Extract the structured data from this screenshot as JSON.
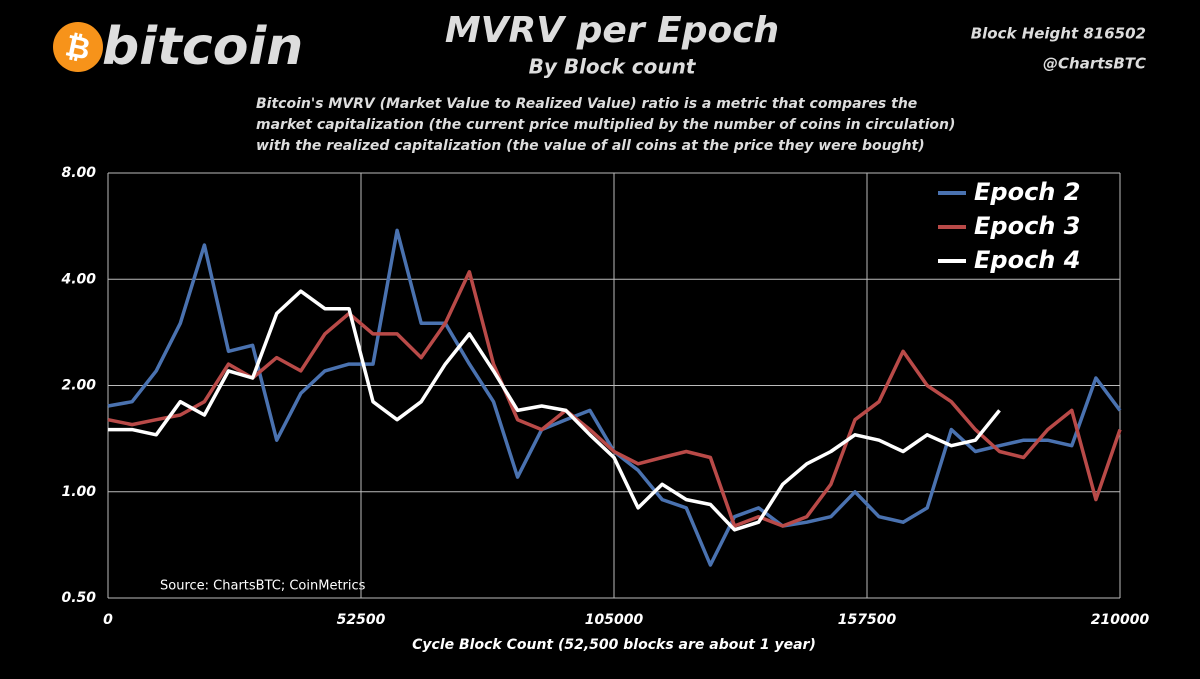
{
  "chart_data": {
    "type": "line",
    "logo_symbol": "₿",
    "logo": "bitcoin",
    "title": "MVRV per Epoch",
    "subtitle": "By Block count",
    "block_height": "Block Height 816502",
    "handle": "@ChartsBTC",
    "description": [
      "Bitcoin's MVRV (Market Value to Realized Value) ratio is a metric that compares the",
      "market capitalization (the current price multiplied by the number of coins in circulation)",
      "with the realized capitalization (the value of all coins at the price they were bought)"
    ],
    "source": "Source:  ChartsBTC; CoinMetrics",
    "x_label": "Cycle Block Count (52,500 blocks are about 1 year)",
    "xlim": [
      0,
      210000
    ],
    "xticks": [
      0,
      52500,
      105000,
      157500,
      210000
    ],
    "ylim": [
      0.5,
      8
    ],
    "yticks": [
      {
        "value": 0.5,
        "label": "0.50"
      },
      {
        "value": 1,
        "label": "1.00"
      },
      {
        "value": 2,
        "label": "2.00"
      },
      {
        "value": 4,
        "label": "4.00"
      },
      {
        "value": 8,
        "label": "8.00"
      }
    ],
    "log_scale_y": true,
    "grid": true,
    "legend": "upper right",
    "x": [
      0,
      5000,
      10000,
      15000,
      20000,
      25000,
      30000,
      35000,
      40000,
      45000,
      50000,
      55000,
      60000,
      65000,
      70000,
      75000,
      80000,
      85000,
      90000,
      95000,
      100000,
      105000,
      110000,
      115000,
      120000,
      125000,
      130000,
      135000,
      140000,
      145000,
      150000,
      155000,
      160000,
      165000,
      170000,
      175000,
      180000,
      185000,
      190000,
      195000,
      200000,
      205000,
      210000
    ],
    "series": [
      {
        "name": "Epoch 2",
        "color": "#4a72b0",
        "values": [
          1.75,
          1.8,
          2.2,
          3.0,
          5.0,
          2.5,
          2.6,
          1.4,
          1.9,
          2.2,
          2.3,
          2.3,
          5.5,
          3.0,
          3.0,
          2.3,
          1.8,
          1.1,
          1.5,
          1.6,
          1.7,
          1.3,
          1.15,
          0.95,
          0.9,
          0.62,
          0.85,
          0.9,
          0.8,
          0.82,
          0.85,
          1.0,
          0.85,
          0.82,
          0.9,
          1.5,
          1.3,
          1.35,
          1.4,
          1.4,
          1.35,
          2.1,
          1.7
        ]
      },
      {
        "name": "Epoch 3",
        "color": "#b94a48",
        "values": [
          1.6,
          1.55,
          1.6,
          1.65,
          1.8,
          2.3,
          2.1,
          2.4,
          2.2,
          2.8,
          3.2,
          2.8,
          2.8,
          2.4,
          3.0,
          4.2,
          2.3,
          1.6,
          1.5,
          1.7,
          1.5,
          1.3,
          1.2,
          1.25,
          1.3,
          1.25,
          0.8,
          0.85,
          0.8,
          0.85,
          1.05,
          1.6,
          1.8,
          2.5,
          2.0,
          1.8,
          1.5,
          1.3,
          1.25,
          1.5,
          1.7,
          0.95,
          1.5
        ]
      },
      {
        "name": "Epoch 4",
        "color": "#ffffff",
        "values": [
          1.5,
          1.5,
          1.45,
          1.8,
          1.65,
          2.2,
          2.1,
          3.2,
          3.7,
          3.3,
          3.3,
          1.8,
          1.6,
          1.8,
          2.3,
          2.8,
          2.2,
          1.7,
          1.75,
          1.7,
          1.45,
          1.25,
          0.9,
          1.05,
          0.95,
          0.92,
          0.78,
          0.82,
          1.05,
          1.2,
          1.3,
          1.45,
          1.4,
          1.3,
          1.45,
          1.35,
          1.4,
          1.7,
          null,
          null,
          null,
          null,
          null
        ]
      }
    ]
  }
}
